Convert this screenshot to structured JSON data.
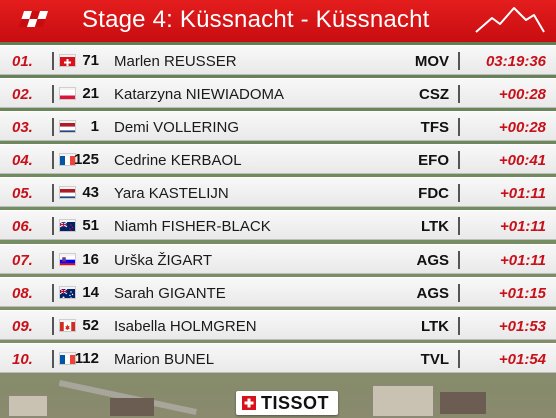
{
  "header": {
    "title": "Stage 4: Küssnacht - Küssnacht"
  },
  "rows": [
    {
      "pos": "01.",
      "country": "SUI",
      "bib": "71",
      "name": "Marlen REUSSER",
      "team": "MOV",
      "time": "03:19:36"
    },
    {
      "pos": "02.",
      "country": "POL",
      "bib": "21",
      "name": "Katarzyna NIEWIADOMA",
      "team": "CSZ",
      "time": "+00:28"
    },
    {
      "pos": "03.",
      "country": "NED",
      "bib": "1",
      "name": "Demi VOLLERING",
      "team": "TFS",
      "time": "+00:28"
    },
    {
      "pos": "04.",
      "country": "FRA",
      "bib": "125",
      "name": "Cedrine KERBAOL",
      "team": "EFO",
      "time": "+00:41"
    },
    {
      "pos": "05.",
      "country": "NED",
      "bib": "43",
      "name": "Yara KASTELIJN",
      "team": "FDC",
      "time": "+01:11"
    },
    {
      "pos": "06.",
      "country": "NZL",
      "bib": "51",
      "name": "Niamh FISHER-BLACK",
      "team": "LTK",
      "time": "+01:11"
    },
    {
      "pos": "07.",
      "country": "SLO",
      "bib": "16",
      "name": "Urška ŽIGART",
      "team": "AGS",
      "time": "+01:11"
    },
    {
      "pos": "08.",
      "country": "AUS",
      "bib": "14",
      "name": "Sarah GIGANTE",
      "team": "AGS",
      "time": "+01:15"
    },
    {
      "pos": "09.",
      "country": "CAN",
      "bib": "52",
      "name": "Isabella HOLMGREN",
      "team": "LTK",
      "time": "+01:53"
    },
    {
      "pos": "10.",
      "country": "FRA",
      "bib": "112",
      "name": "Marion BUNEL",
      "team": "TVL",
      "time": "+01:54"
    }
  ],
  "sponsor": {
    "name": "TISSOT"
  },
  "colors": {
    "accent": "#c8101a",
    "header": "#e41d1d"
  }
}
